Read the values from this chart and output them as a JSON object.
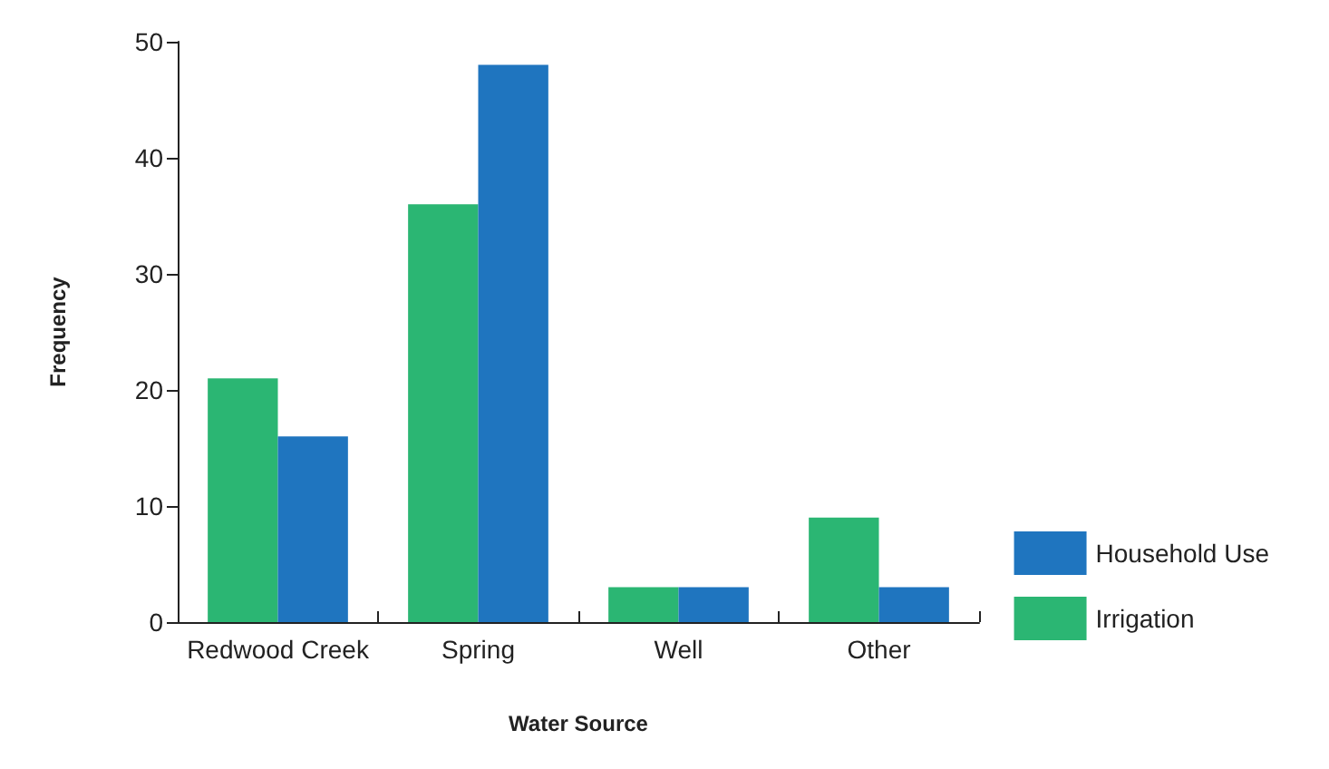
{
  "chart_data": {
    "type": "bar",
    "xlabel": "Water Source",
    "ylabel": "Frequency",
    "categories": [
      "Redwood Creek",
      "Spring",
      "Well",
      "Other"
    ],
    "series": [
      {
        "name": "Irrigation",
        "color": "#2bb673",
        "values": [
          21,
          36,
          3,
          9
        ]
      },
      {
        "name": "Household Use",
        "color": "#1f75bf",
        "values": [
          16,
          48,
          3,
          3
        ]
      }
    ],
    "ylim": [
      0,
      50
    ],
    "yticks": [
      0,
      10,
      20,
      30,
      40,
      50
    ],
    "grid": false,
    "legend": "right"
  }
}
